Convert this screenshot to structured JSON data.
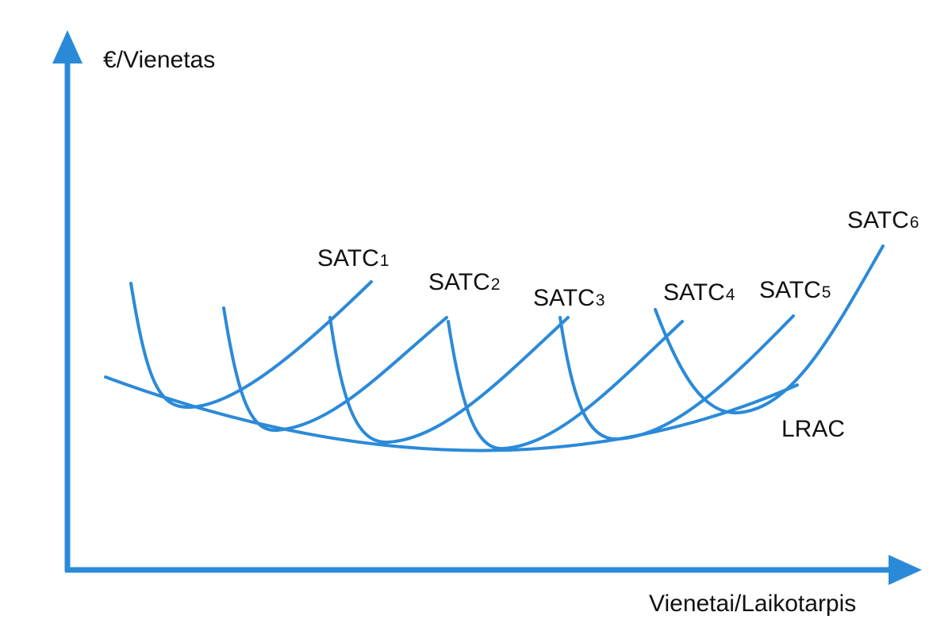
{
  "axes": {
    "y_label": "€/Vienetas",
    "x_label": "Vienetai/Laikotarpis"
  },
  "curves": [
    {
      "label": "SATC",
      "index": "1"
    },
    {
      "label": "SATC",
      "index": "2"
    },
    {
      "label": "SATC",
      "index": "3"
    },
    {
      "label": "SATC",
      "index": "4"
    },
    {
      "label": "SATC",
      "index": "5"
    },
    {
      "label": "SATC",
      "index": "6"
    }
  ],
  "envelope": {
    "label": "LRAC"
  }
}
